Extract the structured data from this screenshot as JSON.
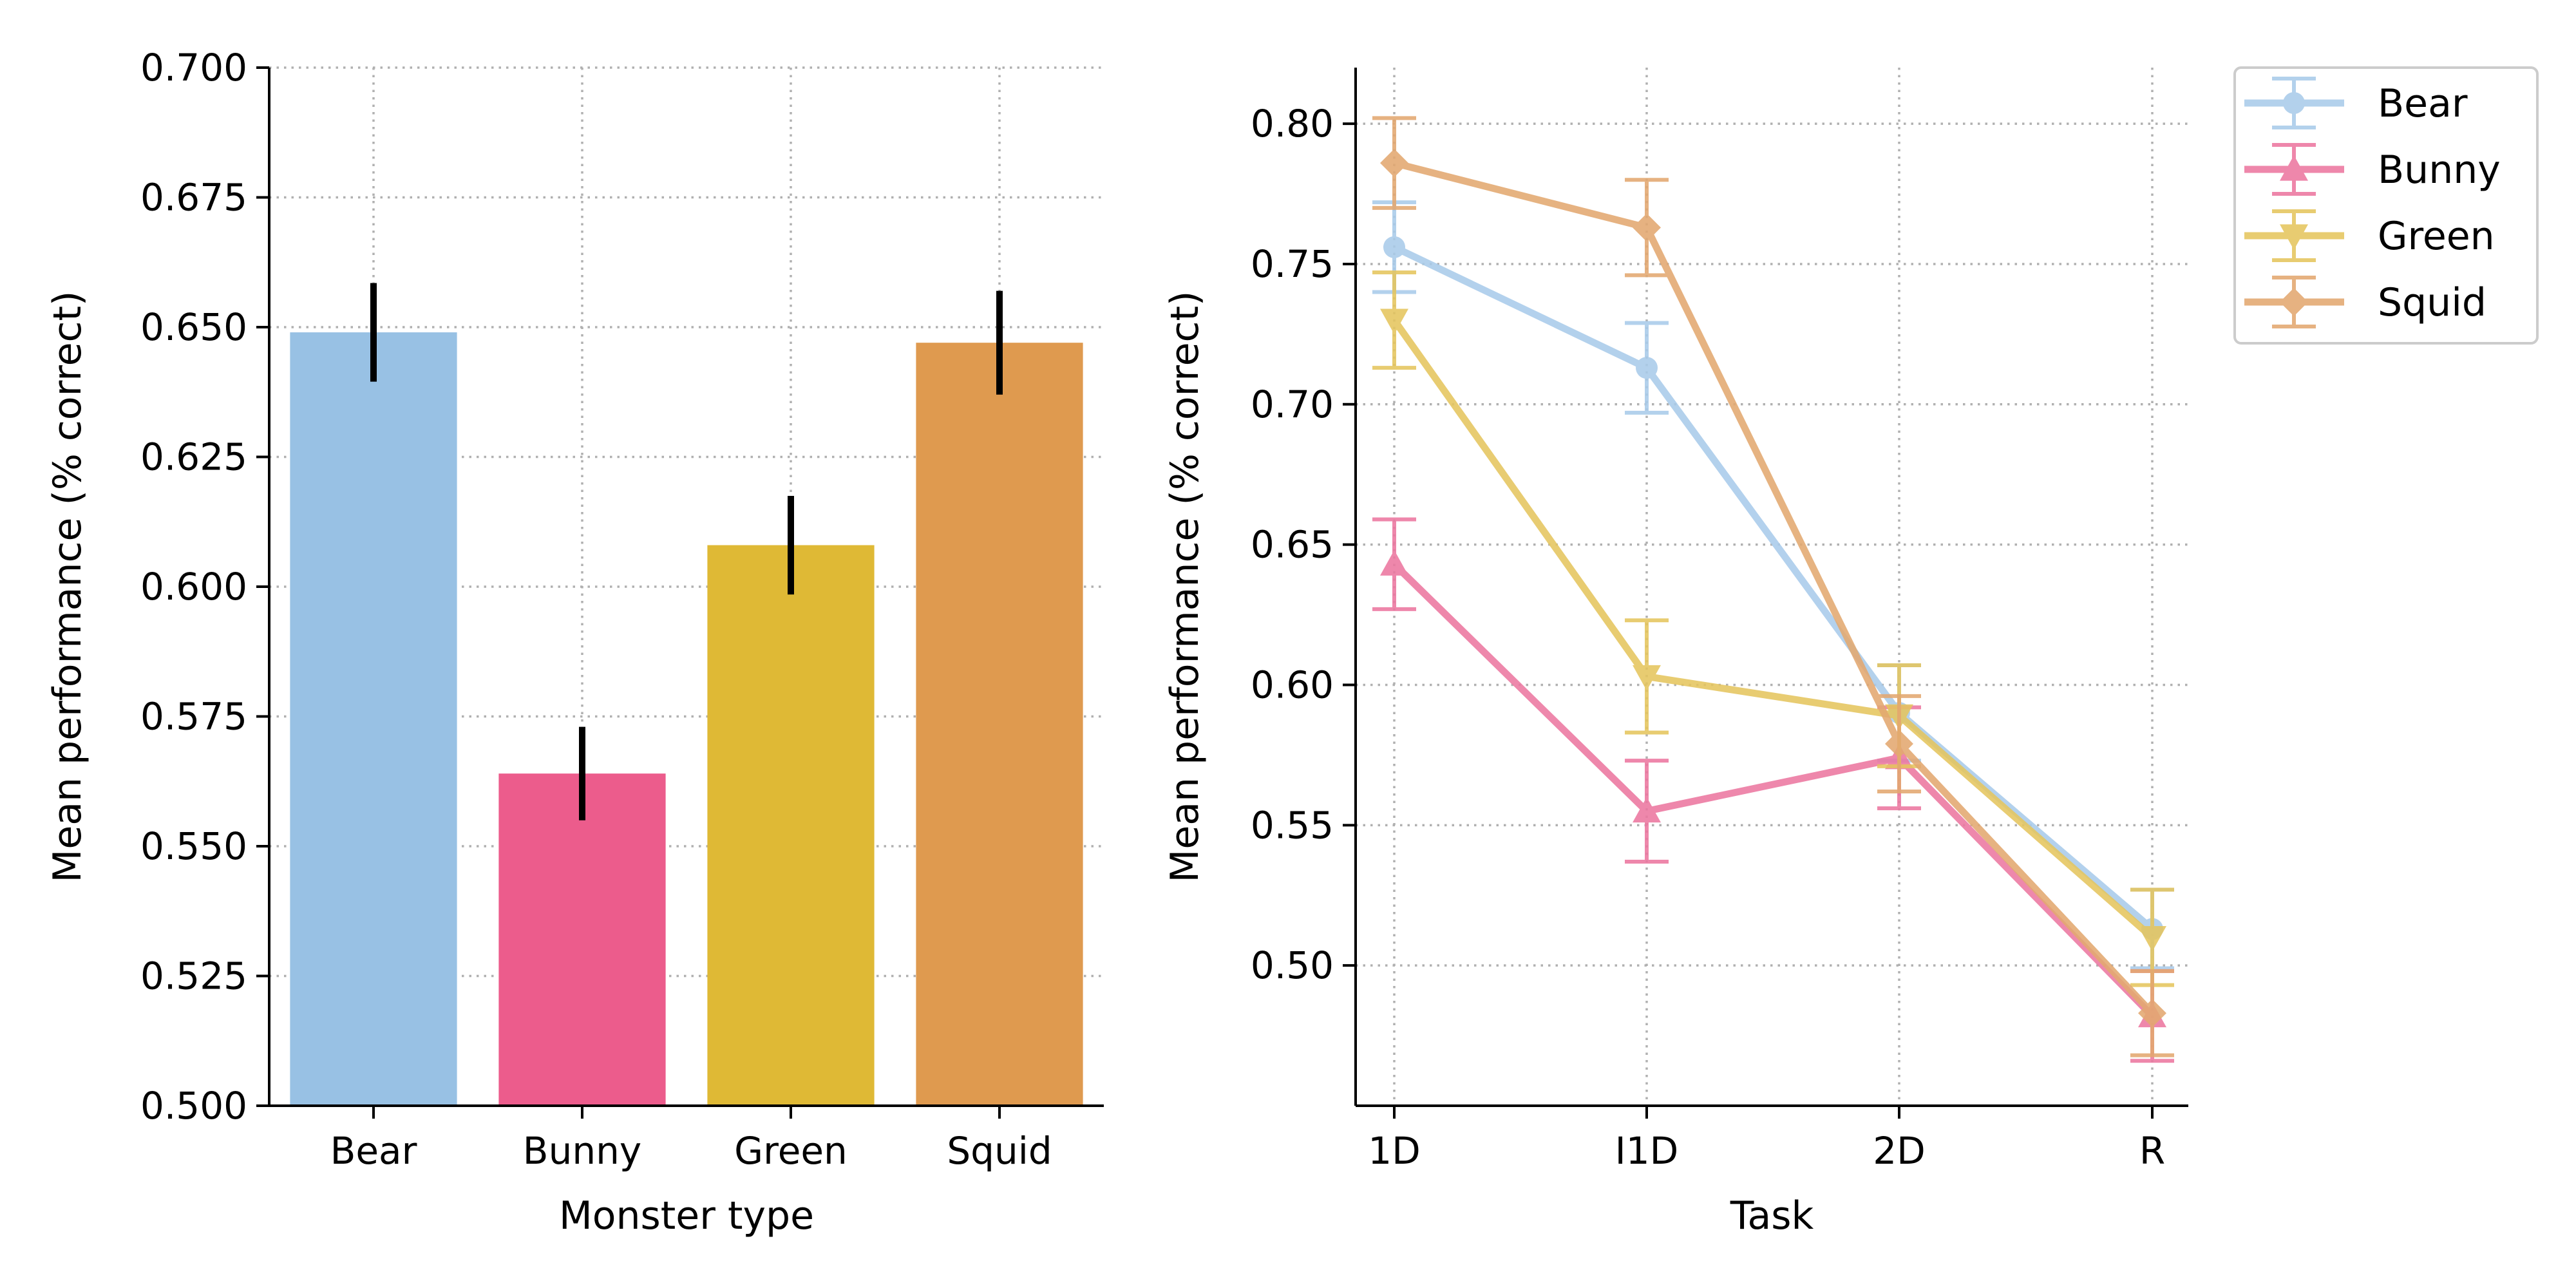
{
  "chart_data": [
    {
      "type": "bar",
      "xlabel": "Monster type",
      "ylabel": "Mean performance (% correct)",
      "categories": [
        "Bear",
        "Bunny",
        "Green",
        "Squid"
      ],
      "values": [
        0.649,
        0.564,
        0.608,
        0.647
      ],
      "errors": [
        0.0095,
        0.009,
        0.0095,
        0.01
      ],
      "colors": [
        "#98c1e4",
        "#ec5c8c",
        "#dfb935",
        "#df9a4f"
      ],
      "ylim": [
        0.5,
        0.7
      ],
      "yticks": [
        0.5,
        0.525,
        0.55,
        0.575,
        0.6,
        0.625,
        0.65,
        0.675,
        0.7
      ],
      "ytick_labels": [
        "0.500",
        "0.525",
        "0.550",
        "0.575",
        "0.600",
        "0.625",
        "0.650",
        "0.675",
        "0.700"
      ],
      "grid": true
    },
    {
      "type": "line",
      "xlabel": "Task",
      "ylabel": "Mean performance (% correct)",
      "categories": [
        "1D",
        "I1D",
        "2D",
        "R"
      ],
      "ylim": [
        0.45,
        0.82
      ],
      "yticks": [
        0.5,
        0.55,
        0.6,
        0.65,
        0.7,
        0.75,
        0.8
      ],
      "ytick_labels": [
        "0.50",
        "0.55",
        "0.60",
        "0.65",
        "0.70",
        "0.75",
        "0.80"
      ],
      "grid": true,
      "legend_position": "outside-top-right",
      "series": [
        {
          "name": "Bear",
          "marker": "circle",
          "color": "#a9cbea",
          "values": [
            0.756,
            0.713,
            0.59,
            0.513
          ],
          "errors": [
            0.016,
            0.016,
            0.017,
            0.014
          ]
        },
        {
          "name": "Bunny",
          "marker": "triangle-up",
          "color": "#ec77a0",
          "values": [
            0.643,
            0.555,
            0.574,
            0.482
          ],
          "errors": [
            0.016,
            0.018,
            0.018,
            0.016
          ]
        },
        {
          "name": "Green",
          "marker": "triangle-down",
          "color": "#e5c55e",
          "values": [
            0.73,
            0.603,
            0.589,
            0.51
          ],
          "errors": [
            0.017,
            0.02,
            0.018,
            0.017
          ]
        },
        {
          "name": "Squid",
          "marker": "diamond",
          "color": "#e3a870",
          "values": [
            0.786,
            0.763,
            0.579,
            0.483
          ],
          "errors": [
            0.016,
            0.017,
            0.017,
            0.015
          ]
        }
      ]
    }
  ]
}
